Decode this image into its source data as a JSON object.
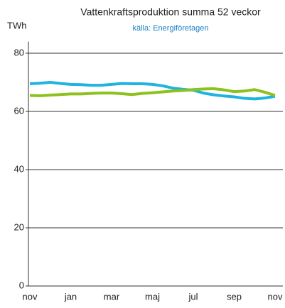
{
  "chart_data": {
    "type": "line",
    "title": "Vattenkraftsproduktion  summa 52 veckor",
    "subtitle": "källa: Energiföretagen",
    "y_label": "TWh",
    "categories": [
      "nov",
      null,
      null,
      null,
      "jan",
      null,
      null,
      null,
      "mar",
      null,
      null,
      null,
      "maj",
      null,
      null,
      null,
      "jul",
      null,
      null,
      null,
      "sep",
      null,
      null,
      null,
      "nov"
    ],
    "series": [
      {
        "color": "#1fb4e0",
        "values": [
          69.5,
          69.7,
          70,
          69.6,
          69.3,
          69.2,
          69,
          69,
          69.3,
          69.6,
          69.5,
          69.5,
          69.3,
          68.8,
          68,
          67.6,
          67.3,
          66.3,
          65.7,
          65.3,
          65,
          64.5,
          64.3,
          64.6,
          65.2
        ]
      },
      {
        "color": "#8cc11e",
        "values": [
          65.5,
          65.4,
          65.6,
          65.8,
          66,
          66,
          66.2,
          66.3,
          66.3,
          66.1,
          65.8,
          66.2,
          66.4,
          66.7,
          67,
          67.2,
          67.5,
          67.7,
          67.8,
          67.4,
          66.8,
          67,
          67.5,
          66.6,
          65.5
        ]
      }
    ],
    "ylim": [
      0,
      84
    ],
    "yticks": [
      0,
      20,
      40,
      60,
      80
    ],
    "grid": true
  }
}
